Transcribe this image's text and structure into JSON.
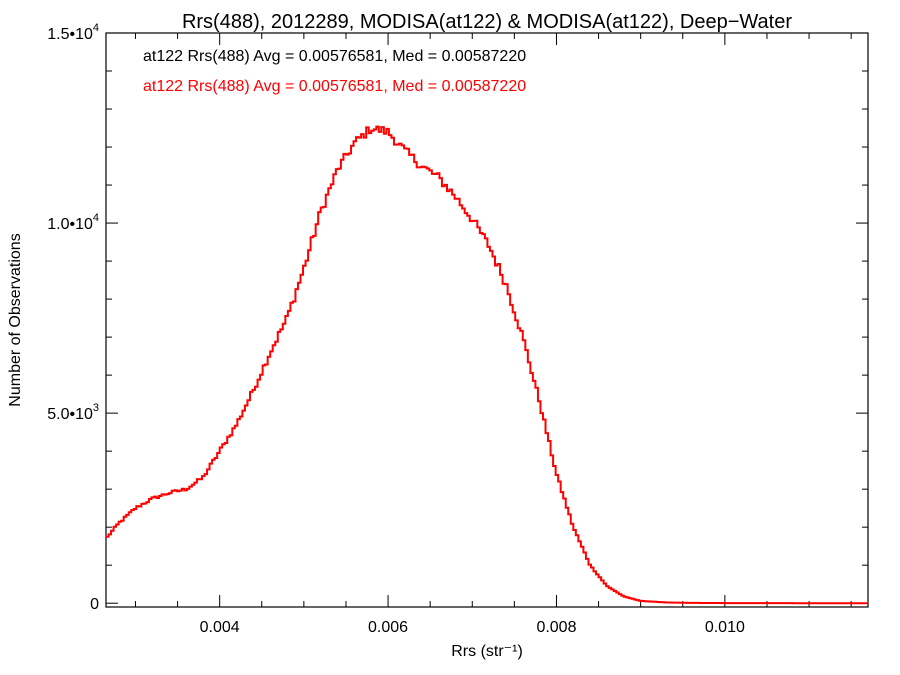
{
  "chart_data": {
    "type": "line",
    "title": "Rrs(488), 2012289, MODISA(at122) & MODISA(at122), Deep−Water",
    "xlabel": "Rrs (str⁻¹)",
    "ylabel": "Number of Observations",
    "xlim": [
      0.00265,
      0.0117
    ],
    "ylim": [
      -100,
      15000
    ],
    "x_ticks": [
      0.004,
      0.006,
      0.008,
      0.01
    ],
    "x_tick_labels": [
      "0.004",
      "0.006",
      "0.008",
      "0.010"
    ],
    "y_ticks": [
      0,
      5000,
      10000,
      15000
    ],
    "y_tick_labels": [
      {
        "base": "0",
        "exp": ""
      },
      {
        "base": "5.0•10",
        "exp": "3"
      },
      {
        "base": "1.0•10",
        "exp": "4"
      },
      {
        "base": "1.5•10",
        "exp": "4"
      }
    ],
    "grid": false,
    "legend_position": "top-left",
    "annotations": [
      {
        "text": "at122 Rrs(488) Avg = 0.00576581, Med = 0.00587220",
        "color": "#000000"
      },
      {
        "text": "at122 Rrs(488) Avg = 0.00576581, Med = 0.00587220",
        "color": "#ff0000"
      }
    ],
    "series": [
      {
        "color": "#ff0000",
        "x": [
          0.00265,
          0.0028,
          0.003,
          0.0032,
          0.0034,
          0.0036,
          0.0038,
          0.004,
          0.0042,
          0.0044,
          0.0046,
          0.0048,
          0.005,
          0.0052,
          0.0054,
          0.0056,
          0.0058,
          0.006,
          0.0062,
          0.0064,
          0.0066,
          0.0068,
          0.007,
          0.0072,
          0.0074,
          0.0076,
          0.0078,
          0.008,
          0.0082,
          0.0084,
          0.0086,
          0.0088,
          0.009,
          0.0093,
          0.0096,
          0.01,
          0.0105,
          0.011,
          0.0117
        ],
        "y": [
          1700,
          2100,
          2500,
          2750,
          2900,
          3000,
          3300,
          4000,
          4700,
          5600,
          6600,
          7500,
          8800,
          10300,
          11400,
          12100,
          12500,
          12400,
          11900,
          11500,
          11200,
          10700,
          10100,
          9400,
          8400,
          7000,
          5300,
          3400,
          2000,
          1000,
          450,
          180,
          60,
          20,
          8,
          3,
          1,
          0,
          0
        ]
      }
    ]
  }
}
